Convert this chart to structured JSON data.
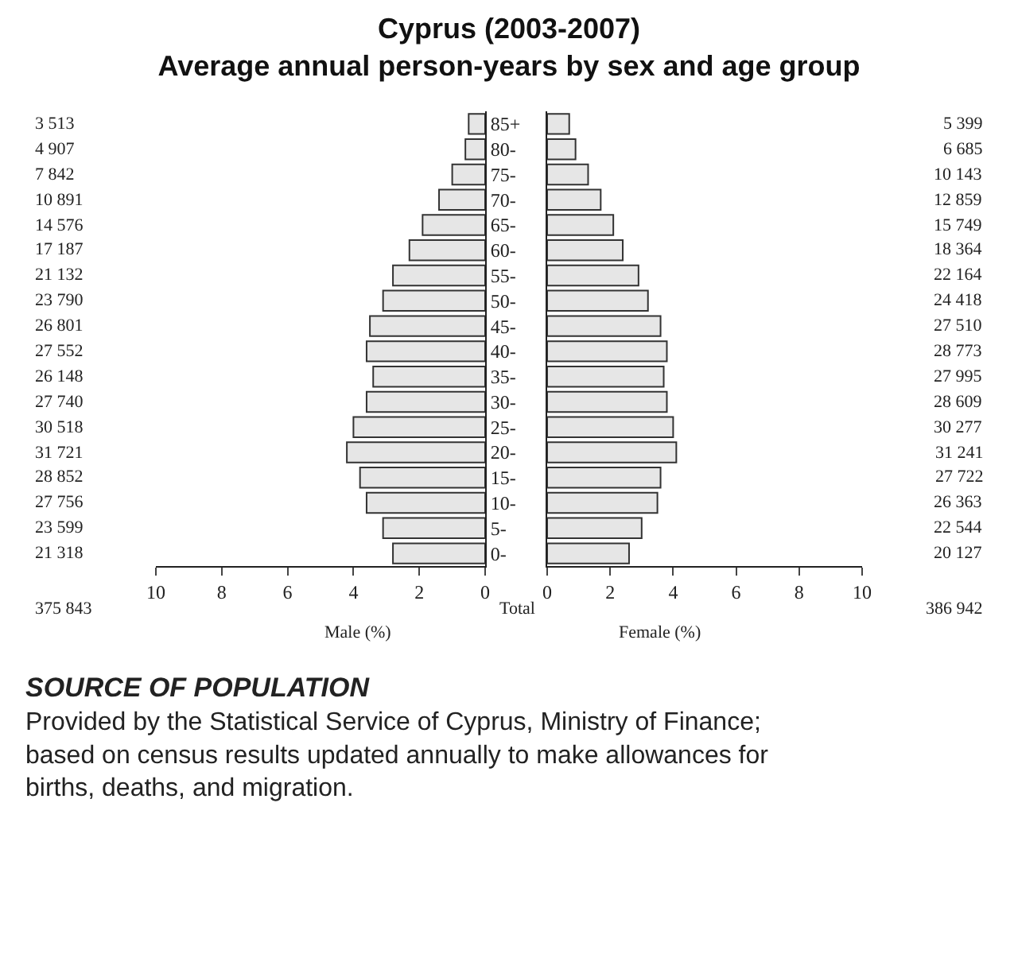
{
  "chart_data": [
    {
      "type": "bar",
      "orientation": "horizontal",
      "title": "Cyprus (2003-2007)",
      "subtitle": "Average annual person-years by sex and age group",
      "xlabel": "Male (%)",
      "categories": [
        "85+",
        "80-",
        "75-",
        "70-",
        "65-",
        "60-",
        "55-",
        "50-",
        "45-",
        "40-",
        "35-",
        "30-",
        "25-",
        "20-",
        "15-",
        "10-",
        "5-",
        "0-"
      ],
      "values": [
        0.5,
        0.6,
        1.0,
        1.4,
        1.9,
        2.3,
        2.8,
        3.1,
        3.5,
        3.6,
        3.4,
        3.6,
        4.0,
        4.2,
        3.8,
        3.6,
        3.1,
        2.8
      ],
      "color": "#e6e6e6",
      "xlim": [
        10,
        0
      ],
      "xticks": [
        10,
        8,
        6,
        4,
        2,
        0
      ],
      "annotations": [
        "3 513",
        "4 907",
        "7 842",
        "10 891",
        "14 576",
        "17 187",
        "21 132",
        "23 790",
        "26 801",
        "27 552",
        "26 148",
        "27 740",
        "30 518",
        "31 721",
        "28 852",
        "27 756",
        "23 599",
        "21 318",
        "375 843",
        "Total"
      ]
    },
    {
      "type": "bar",
      "orientation": "horizontal",
      "xlabel": "Female (%)",
      "values": [
        0.7,
        0.9,
        1.3,
        1.7,
        2.1,
        2.4,
        2.9,
        3.2,
        3.6,
        3.8,
        3.7,
        3.8,
        4.0,
        4.1,
        3.6,
        3.5,
        3.0,
        2.6
      ],
      "color": "#e6e6e6",
      "xlim": [
        0,
        10
      ],
      "xticks": [
        0,
        2,
        4,
        6,
        8,
        10
      ],
      "tick_labels": "x",
      "annotations": [
        "5 399",
        "6 685",
        "10 143",
        "12 859",
        "15 749",
        "18 364",
        "22 164",
        "24 418",
        "27 510",
        "28 773",
        "27 995",
        "28 609",
        "30 277",
        "31 241",
        "27 722",
        "26 363",
        "22 544",
        "20 127",
        "386 942",
        "SOURCE OF POPULATION",
        "Provided by the Statistical Service of Cyprus, Ministry of Finance; based on census results updated annually to make allowances for births, deaths, and migration."
      ]
    }
  ]
}
